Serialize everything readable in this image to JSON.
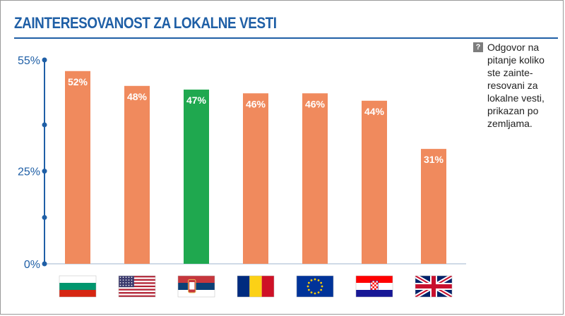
{
  "title": "ZAINTERESOVANOST ZA LOKALNE VESTI",
  "note": {
    "icon": "question-icon",
    "text": "Odgovor na\npitanje koliko\nste zainte-\nresovani za\nlokalne vesti,\nprikazan po\nzemljama."
  },
  "chart_data": {
    "type": "bar",
    "categories": [
      "bulgaria-flag",
      "usa-flag",
      "serbia-flag",
      "romania-flag",
      "eu-flag",
      "croatia-flag",
      "uk-flag"
    ],
    "values": [
      52,
      48,
      47,
      46,
      46,
      44,
      31
    ],
    "value_labels": [
      "52%",
      "48%",
      "47%",
      "46%",
      "46%",
      "44%",
      "31%"
    ],
    "bar_colors": [
      "#f08a5d",
      "#f08a5d",
      "#1fa84f",
      "#f08a5d",
      "#f08a5d",
      "#f08a5d",
      "#f08a5d"
    ],
    "ylim": [
      0,
      55
    ],
    "yticks": [
      {
        "value": 0,
        "label": "0%"
      },
      {
        "value": 25,
        "label": "25%"
      },
      {
        "value": 55,
        "label": "55%"
      }
    ],
    "ydots": [
      0,
      12.5,
      25,
      37.5,
      55
    ],
    "axis_color": "#1f5fa6"
  }
}
